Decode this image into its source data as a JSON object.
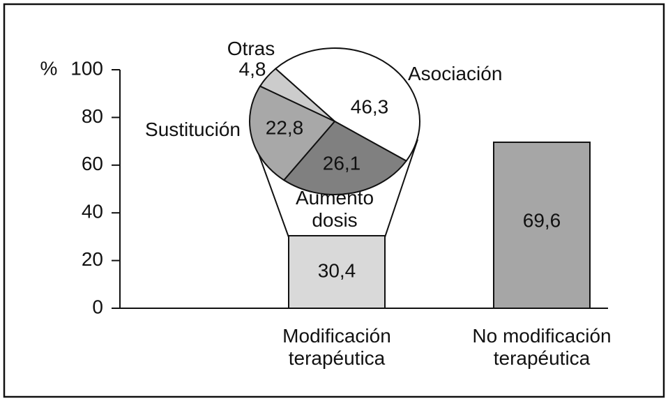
{
  "chart_data": [
    {
      "type": "bar",
      "y_label": "%",
      "categories": [
        "Modificación terapéutica",
        "No modificación terapéutica"
      ],
      "values": [
        30.4,
        69.6
      ],
      "value_labels": [
        "30,4",
        "69,6"
      ],
      "colors": [
        "#d9d9d9",
        "#a6a6a6"
      ],
      "ylim": [
        0,
        100
      ],
      "yticks": [
        0,
        20,
        40,
        60,
        80,
        100
      ]
    },
    {
      "type": "pie",
      "categories": [
        "Asociación",
        "Aumento dosis",
        "Sustitución",
        "Otras"
      ],
      "values": [
        46.3,
        26.1,
        22.8,
        4.8
      ],
      "value_labels": [
        "46,3",
        "26,1",
        "22,8",
        "4,8"
      ],
      "colors": [
        "#ffffff",
        "#808080",
        "#a8a8a8",
        "#cccccc"
      ]
    }
  ]
}
